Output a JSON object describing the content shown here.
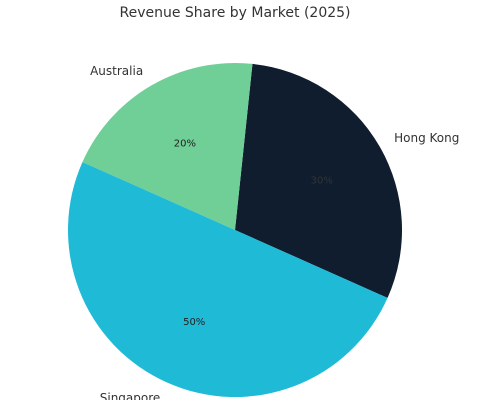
{
  "chart_data": {
    "type": "pie",
    "title": "Revenue Share by Market (2025)",
    "categories": [
      "Hong Kong",
      "Australia",
      "Singapore"
    ],
    "values": [
      30,
      20,
      50
    ],
    "value_labels": [
      "30%",
      "20%",
      "50%"
    ],
    "colors": [
      "#0f1d2e",
      "#6fcf97",
      "#1fbad6"
    ],
    "label_colors": [
      "#333333",
      "#222222",
      "#222222"
    ],
    "start_angle_deg": -24,
    "direction": "counterclockwise",
    "legend": "none"
  }
}
